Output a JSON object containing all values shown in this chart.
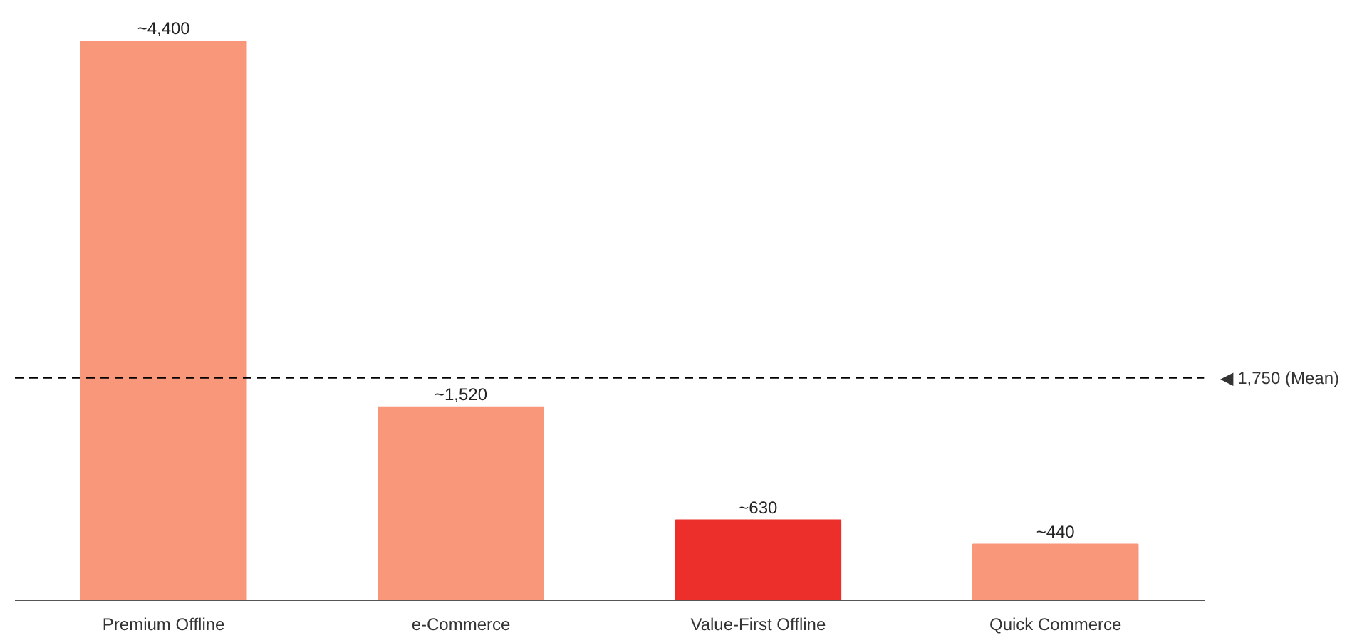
{
  "chart_data": {
    "type": "bar",
    "categories": [
      "Premium Offline",
      "e-Commerce",
      "Value-First Offline",
      "Quick Commerce"
    ],
    "values": [
      4400,
      1520,
      630,
      440
    ],
    "colors": [
      "#f9977a",
      "#f9977a",
      "#ec2f2a",
      "#f9977a"
    ],
    "value_labels": [
      "~4,400",
      "~1,520",
      "~630",
      "~440"
    ],
    "ref_lines": [
      {
        "axis": "y",
        "value": 1750,
        "label": "◀ 1,750 (Mean)",
        "color": "#000000",
        "line_style": "dashed"
      }
    ],
    "grid": false
  }
}
